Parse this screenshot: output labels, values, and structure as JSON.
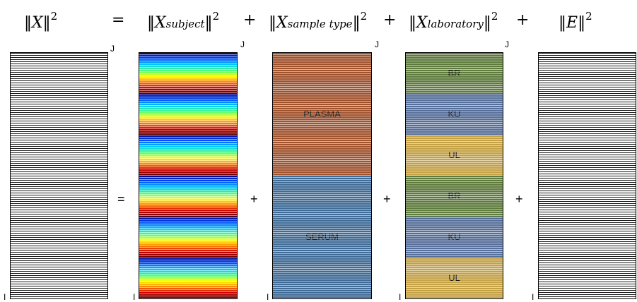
{
  "equation": {
    "x_term": {
      "norm": "‖",
      "var": "X",
      "sup": "2"
    },
    "equals": "=",
    "subject_term": {
      "var": "X",
      "sub": "subject",
      "sup": "2"
    },
    "plus": "+",
    "sample_term": {
      "var": "X",
      "sub": "sample type",
      "sup": "2"
    },
    "lab_term": {
      "var": "X",
      "sub": "laboratory",
      "sup": "2"
    },
    "error_term": {
      "var": "E",
      "sup": "2"
    }
  },
  "axis": {
    "j": "J",
    "i": "I"
  },
  "operators": {
    "equals": "=",
    "plus": "+"
  },
  "sample_type_blocks": [
    {
      "label": "PLASMA",
      "color": "#a0522d"
    },
    {
      "label": "SERUM",
      "color": "#3f6b96"
    }
  ],
  "laboratory_blocks": [
    {
      "label": "BR",
      "color": "#5e7a3c"
    },
    {
      "label": "KU",
      "color": "#566e9a"
    },
    {
      "label": "UL",
      "color": "#c4a145"
    },
    {
      "label": "BR",
      "color": "#5e7a3c"
    },
    {
      "label": "KU",
      "color": "#566e9a"
    },
    {
      "label": "UL",
      "color": "#c4a145"
    }
  ],
  "colors": {
    "subject_gradient": [
      "#00008b",
      "#0050ff",
      "#00c8ff",
      "#40ff80",
      "#ffff00",
      "#ff8000",
      "#d00000",
      "#600000"
    ]
  }
}
